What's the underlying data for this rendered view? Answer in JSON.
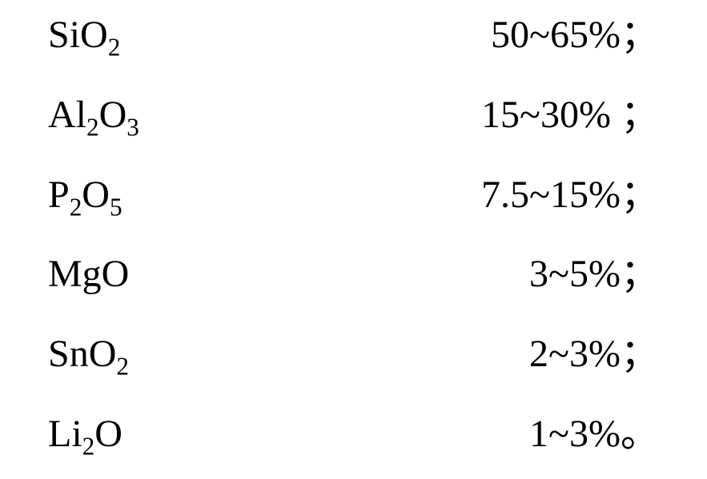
{
  "type": "table",
  "background_color": "#ffffff",
  "text_color": "#000000",
  "font_family": "Times New Roman",
  "font_size_pt": 36,
  "rows": [
    {
      "formula_html": "SiO<sub>2</sub>",
      "value": "50~65%；"
    },
    {
      "formula_html": "Al<sub>2</sub>O<sub>3</sub>",
      "value": "15~30% ；"
    },
    {
      "formula_html": "P<sub>2</sub>O<sub>5</sub>",
      "value": "7.5~15%；"
    },
    {
      "formula_html": "MgO",
      "value": "3~5%；"
    },
    {
      "formula_html": "SnO<sub>2</sub>",
      "value": "2~3%；"
    },
    {
      "formula_html": "Li<sub>2</sub>O",
      "value": "1~3%。"
    }
  ]
}
